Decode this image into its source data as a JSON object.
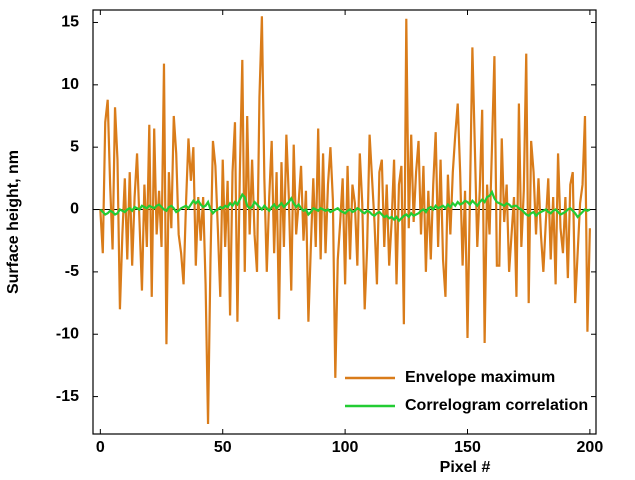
{
  "chart_data": {
    "type": "line",
    "x_label": "Pixel #",
    "y_label": "Surface height, nm",
    "xlim": [
      -3,
      202.5
    ],
    "ylim": [
      -18,
      16
    ],
    "xticks": [
      0,
      50,
      100,
      150,
      200
    ],
    "yticks": [
      -15,
      -10,
      -5,
      0,
      5,
      10,
      15
    ],
    "zero_line": true,
    "legend": "lower right",
    "x": [
      0,
      1,
      2,
      3,
      4,
      5,
      6,
      7,
      8,
      9,
      10,
      11,
      12,
      13,
      14,
      15,
      16,
      17,
      18,
      19,
      20,
      21,
      22,
      23,
      24,
      25,
      26,
      27,
      28,
      29,
      30,
      31,
      32,
      33,
      34,
      35,
      36,
      37,
      38,
      39,
      40,
      41,
      42,
      43,
      44,
      45,
      46,
      47,
      48,
      49,
      50,
      51,
      52,
      53,
      54,
      55,
      56,
      57,
      58,
      59,
      60,
      61,
      62,
      63,
      64,
      65,
      66,
      67,
      68,
      69,
      70,
      71,
      72,
      73,
      74,
      75,
      76,
      77,
      78,
      79,
      80,
      81,
      82,
      83,
      84,
      85,
      86,
      87,
      88,
      89,
      90,
      91,
      92,
      93,
      94,
      95,
      96,
      97,
      98,
      99,
      100,
      101,
      102,
      103,
      104,
      105,
      106,
      107,
      108,
      109,
      110,
      111,
      112,
      113,
      114,
      115,
      116,
      117,
      118,
      119,
      120,
      121,
      122,
      123,
      124,
      125,
      126,
      127,
      128,
      129,
      130,
      131,
      132,
      133,
      134,
      135,
      136,
      137,
      138,
      139,
      140,
      141,
      142,
      143,
      144,
      145,
      146,
      147,
      148,
      149,
      150,
      151,
      152,
      153,
      154,
      155,
      156,
      157,
      158,
      159,
      160,
      161,
      162,
      163,
      164,
      165,
      166,
      167,
      168,
      169,
      170,
      171,
      172,
      173,
      174,
      175,
      176,
      177,
      178,
      179,
      180,
      181,
      182,
      183,
      184,
      185,
      186,
      187,
      188,
      189,
      190,
      191,
      192,
      193,
      194,
      195,
      196,
      197,
      198,
      199,
      200
    ],
    "series": [
      {
        "name": "Envelope maximum",
        "color": "#d97c1a",
        "values": [
          0,
          -3.5,
          7,
          8.8,
          2,
          -3.2,
          8.2,
          4,
          -8,
          -2,
          2.5,
          -4,
          3,
          -4.5,
          1,
          4.5,
          -1,
          -6.5,
          2,
          -3,
          6.8,
          -7,
          6.5,
          -2,
          1.5,
          -3,
          11.7,
          -10.8,
          3,
          -1.5,
          7.5,
          4.5,
          -2,
          -3.5,
          -6,
          0.5,
          5.7,
          2.3,
          5,
          -4.5,
          1,
          -2.5,
          1,
          -6,
          -17.2,
          -4,
          5.5,
          3.5,
          -1.5,
          -7,
          4,
          -3,
          2.3,
          -8.5,
          3,
          7,
          -9,
          3,
          12,
          -5,
          7.5,
          -2,
          4,
          -2,
          -5,
          9,
          15.5,
          2.5,
          -5,
          1,
          5.5,
          -3.5,
          3,
          -8.8,
          3.8,
          -3,
          6,
          1,
          -6.5,
          5.2,
          -2,
          0.5,
          3.5,
          -2.5,
          1.5,
          -9,
          -3,
          2.5,
          -3,
          6.5,
          -4,
          4.5,
          -3.5,
          2,
          5,
          0.8,
          -13.5,
          -4,
          -1,
          2.5,
          -6,
          3.5,
          -4,
          2,
          0.5,
          -4.5,
          4.5,
          0.5,
          -8,
          -3,
          6,
          2.5,
          -1,
          -6,
          3,
          4,
          -3,
          2,
          -4.5,
          -1,
          4,
          -6,
          2,
          3.5,
          -9.2,
          15.3,
          -1.5,
          6,
          -1,
          3,
          5.5,
          -2,
          3.5,
          -5,
          1.5,
          -4,
          2,
          6.2,
          -3,
          4,
          -4,
          -7,
          2.8,
          -2,
          3,
          6,
          8.5,
          3,
          -4.5,
          1.5,
          -10.3,
          1,
          13,
          5,
          -3,
          1.5,
          8,
          -10.7,
          2,
          -2,
          5,
          12.3,
          -4.5,
          -4.5,
          5.7,
          -1,
          2,
          -5,
          -2,
          1,
          -7,
          8.5,
          -3,
          1.5,
          12.5,
          -7.5,
          5.5,
          3,
          -2,
          2.5,
          -2,
          -5,
          -1,
          2.5,
          -4,
          1,
          -6,
          4.5,
          -1.5,
          -3.5,
          1,
          -5.5,
          2,
          3,
          -7.5,
          -3.5,
          0.5,
          2,
          7.5,
          -9.8,
          -1.5
        ]
      },
      {
        "name": "Correlogram correlation",
        "color": "#22cc33",
        "values": [
          0,
          -0.2,
          -0.4,
          -0.3,
          -0.1,
          -0.2,
          -0.4,
          -0.3,
          0,
          -0.1,
          -0.2,
          0,
          0.1,
          -0.1,
          0.2,
          0.1,
          0,
          0.3,
          0.2,
          0.1,
          0.3,
          0.2,
          0.1,
          0.3,
          0.4,
          0.2,
          0,
          -0.1,
          0.2,
          0.3,
          0.1,
          -0.2,
          -0.1,
          0.1,
          0.2,
          0.3,
          0.1,
          0.4,
          0.7,
          0.5,
          0.7,
          0.4,
          0.2,
          0.3,
          0.6,
          0,
          -0.3,
          -0.1,
          0,
          0.2,
          0.1,
          0.3,
          0.2,
          0.5,
          0.3,
          0.6,
          0.4,
          0.8,
          1.2,
          1.0,
          0.3,
          0.1,
          0.2,
          0.6,
          0.4,
          0.2,
          0,
          0.3,
          0.1,
          -0.1,
          0.2,
          0.4,
          0.1,
          0.3,
          0.5,
          0.2,
          0.4,
          0.6,
          0.9,
          0.5,
          0.2,
          0.4,
          0.1,
          -0.1,
          0,
          -0.4,
          -0.2,
          0.1,
          0,
          -0.1,
          0.1,
          0,
          -0.1,
          0,
          -0.2,
          -0.1,
          0,
          0.1,
          -0.1,
          -0.2,
          -0.3,
          -0.1,
          0,
          -0.2,
          -0.1,
          0.1,
          0,
          -0.2,
          -0.3,
          -0.1,
          -0.2,
          -0.4,
          -0.5,
          -0.3,
          -0.2,
          -0.4,
          -0.6,
          -0.5,
          -0.7,
          -0.6,
          -0.8,
          -0.6,
          -0.9,
          -0.7,
          -0.5,
          -0.4,
          -0.6,
          -0.3,
          -0.5,
          -0.4,
          -0.3,
          -0.1,
          0,
          -0.2,
          0.1,
          0.2,
          0,
          0.3,
          0.1,
          0.2,
          0.3,
          0.1,
          0.4,
          0.2,
          0.5,
          0.3,
          0.6,
          0.4,
          0.5,
          0.7,
          0.6,
          0.4,
          0.7,
          0.5,
          0.3,
          0.6,
          0.8,
          0.6,
          1.0,
          1.1,
          1.4,
          0.9,
          0.6,
          0.5,
          0.4,
          0.3,
          0.5,
          0.4,
          0.2,
          0.3,
          0.3,
          0.1,
          0,
          -0.2,
          -0.4,
          -0.5,
          -0.3,
          -0.2,
          -0.5,
          -0.3,
          -0.2,
          -0.1,
          0,
          -0.2,
          -0.3,
          -0.1,
          0,
          -0.2,
          -0.4,
          -0.3,
          -0.2,
          0,
          0.1,
          -0.1,
          -0.3,
          -0.6,
          -0.4,
          -0.2,
          0,
          -0.1,
          0
        ]
      }
    ]
  }
}
